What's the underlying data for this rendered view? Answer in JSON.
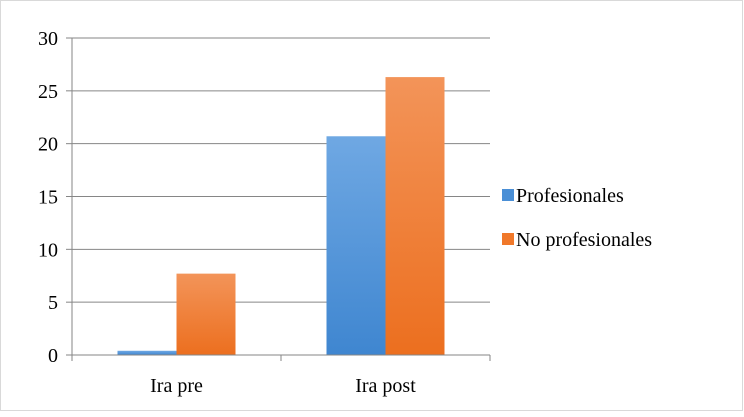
{
  "chart_data": {
    "type": "bar",
    "categories": [
      "Ira pre",
      "Ira post"
    ],
    "series": [
      {
        "name": "Profesionales",
        "values": [
          0.4,
          20.7
        ],
        "color": "#4a8fd6"
      },
      {
        "name": "No profesionales",
        "values": [
          7.7,
          26.3
        ],
        "color": "#f0782a"
      }
    ],
    "ylim": [
      0,
      30
    ],
    "yticks": [
      0,
      5,
      10,
      15,
      20,
      25,
      30
    ],
    "grid": true,
    "legend": "right",
    "title": "",
    "xlabel": "",
    "ylabel": ""
  }
}
